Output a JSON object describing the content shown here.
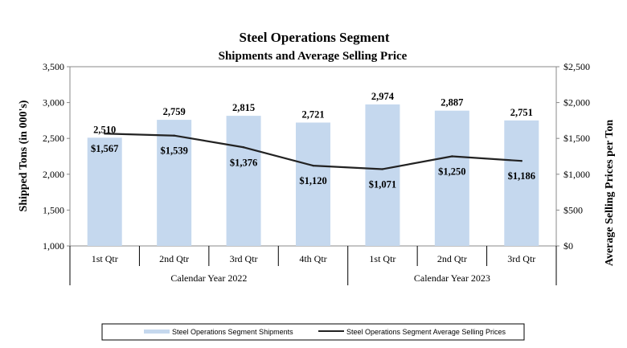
{
  "chart_data": {
    "type": "bar",
    "title": "Steel Operations Segment",
    "subtitle": "Shipments and Average Selling Price",
    "categories": [
      "1st Qtr",
      "2nd Qtr",
      "3rd Qtr",
      "4th Qtr",
      "1st Qtr",
      "2nd Qtr",
      "3rd Qtr"
    ],
    "groups": [
      {
        "label": "Calendar Year 2022",
        "count": 4
      },
      {
        "label": "Calendar Year 2023",
        "count": 3
      }
    ],
    "series": [
      {
        "name": "Steel Operations Segment Shipments",
        "type": "bar",
        "axis": "left",
        "color": "#c5d8ee",
        "values": [
          2510,
          2759,
          2815,
          2721,
          2974,
          2887,
          2751
        ],
        "labels": [
          "2,510",
          "2,759",
          "2,815",
          "2,721",
          "2,974",
          "2,887",
          "2,751"
        ]
      },
      {
        "name": "Steel Operations Segment Average Selling Prices",
        "type": "line",
        "axis": "right",
        "color": "#222222",
        "values": [
          1567,
          1539,
          1376,
          1120,
          1071,
          1250,
          1186
        ],
        "labels": [
          "$1,567",
          "$1,539",
          "$1,376",
          "$1,120",
          "$1,071",
          "$1,250",
          "$1,186"
        ]
      }
    ],
    "ylabel": "Shipped Tons (in 000's)",
    "ylim": [
      1000,
      3500
    ],
    "yticks": [
      "1,000",
      "1,500",
      "2,000",
      "2,500",
      "3,000",
      "3,500"
    ],
    "y2label": "Average Selling Prices per Ton",
    "y2lim": [
      0,
      2500
    ],
    "y2ticks": [
      "$0",
      "$500",
      "$1,000",
      "$1,500",
      "$2,000",
      "$2,500"
    ],
    "grid": false,
    "legend_position": "bottom"
  }
}
